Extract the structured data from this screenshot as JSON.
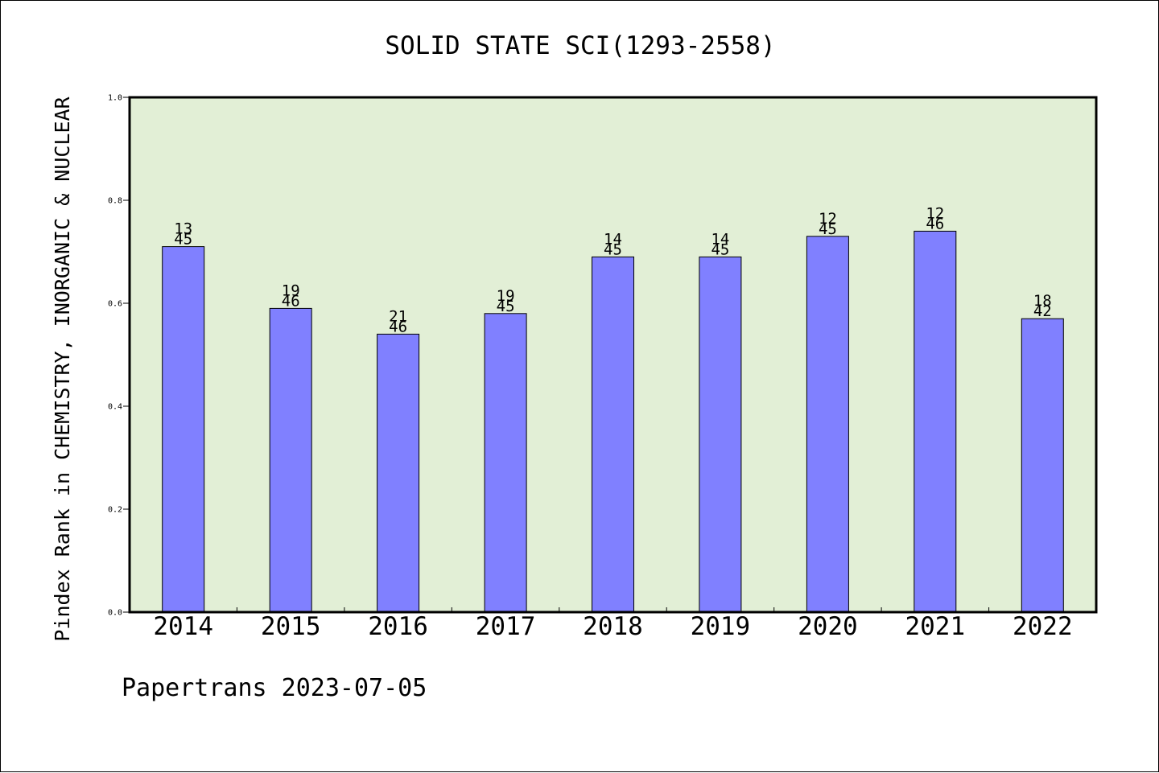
{
  "chart_data": {
    "type": "bar",
    "title": "SOLID STATE SCI(1293-2558)",
    "xlabel": "",
    "ylabel": "Pindex Rank in CHEMISTRY, INORGANIC & NUCLEAR",
    "ylim": [
      0,
      1.0
    ],
    "yticks": [
      "0.0",
      "0.2",
      "0.4",
      "0.6",
      "0.8",
      "1.0"
    ],
    "categories": [
      "2014",
      "2015",
      "2016",
      "2017",
      "2018",
      "2019",
      "2020",
      "2021",
      "2022"
    ],
    "values": [
      0.71,
      0.59,
      0.54,
      0.58,
      0.69,
      0.69,
      0.73,
      0.74,
      0.57
    ],
    "rank_labels": [
      "13",
      "19",
      "21",
      "19",
      "14",
      "14",
      "12",
      "12",
      "18"
    ],
    "total_labels": [
      "45",
      "46",
      "46",
      "45",
      "45",
      "45",
      "45",
      "46",
      "42"
    ],
    "grid": false,
    "legend": "none",
    "colors": {
      "bar_fill": "#8080ff",
      "plot_background": "#e2efd6",
      "axis": "#000000"
    }
  },
  "footer": {
    "credit": "Papertrans 2023-07-05"
  }
}
